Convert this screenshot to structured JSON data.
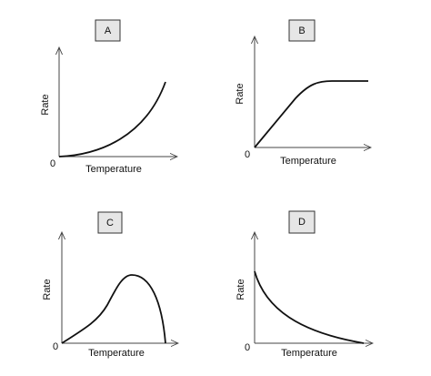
{
  "panels": [
    {
      "label": "A",
      "y_label": "Rate",
      "x_label": "Temperature",
      "origin": "0"
    },
    {
      "label": "B",
      "y_label": "Rate",
      "x_label": "Temperature",
      "origin": "0"
    },
    {
      "label": "C",
      "y_label": "Rate",
      "x_label": "Temperature",
      "origin": "0"
    },
    {
      "label": "D",
      "y_label": "Rate",
      "x_label": "Temperature",
      "origin": "0"
    }
  ]
}
